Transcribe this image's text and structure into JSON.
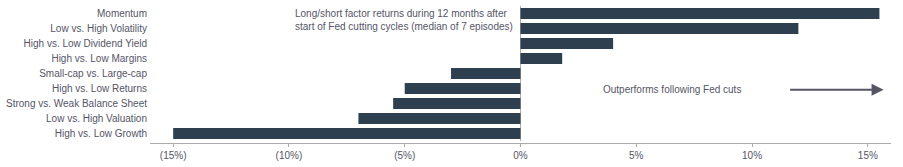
{
  "chart_data": {
    "type": "bar",
    "orientation": "horizontal",
    "subtitle": "Long/short factor returns during 12 months after\nstart of Fed cutting cycles (median of 7 episodes)",
    "annotations": [
      "Outperforms following Fed cuts"
    ],
    "categories": [
      "High vs. Low Growth",
      "Low vs. High Valuation",
      "Strong vs. Weak Balance Sheet",
      "High vs. Low Returns",
      "Small-cap vs. Large-cap",
      "High vs. Low Margins",
      "High vs. Low Dividend Yield",
      "Low vs. High Volatility",
      "Momentum"
    ],
    "values": [
      -15.0,
      -7.0,
      -5.5,
      -5.0,
      -3.0,
      1.8,
      4.0,
      12.0,
      15.5
    ],
    "color": "#2e3f4f",
    "xlim": [
      -16,
      16
    ],
    "xticks": [
      {
        "value": -15,
        "label": "(15%)"
      },
      {
        "value": -10,
        "label": "(10%)"
      },
      {
        "value": -5,
        "label": "(5%)"
      },
      {
        "value": 0,
        "label": "0%"
      },
      {
        "value": 5,
        "label": "5%"
      },
      {
        "value": 10,
        "label": "10%"
      },
      {
        "value": 15,
        "label": "15%"
      }
    ],
    "grid": false
  }
}
